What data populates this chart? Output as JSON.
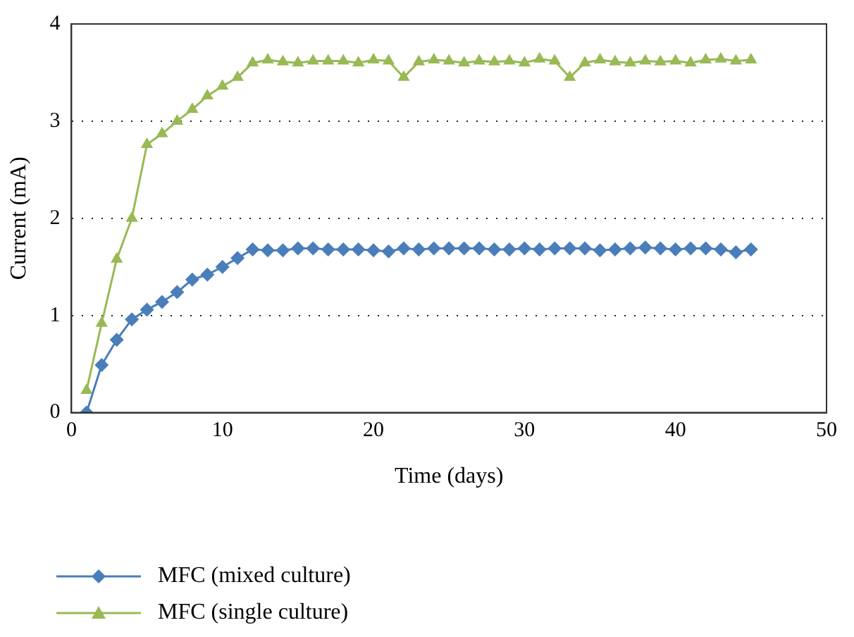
{
  "chart_data": {
    "type": "line",
    "xlabel": "Time (days)",
    "ylabel": "Current (mA)",
    "x": [
      1,
      2,
      3,
      4,
      5,
      6,
      7,
      8,
      9,
      10,
      11,
      12,
      13,
      14,
      15,
      16,
      17,
      18,
      19,
      20,
      21,
      22,
      23,
      24,
      25,
      26,
      27,
      28,
      29,
      30,
      31,
      32,
      33,
      34,
      35,
      36,
      37,
      38,
      39,
      40,
      41,
      42,
      43,
      44,
      45
    ],
    "xlim": [
      0,
      50
    ],
    "xticks": [
      0,
      10,
      20,
      30,
      40,
      50
    ],
    "ylim": [
      0,
      4
    ],
    "yticks": [
      0,
      1,
      2,
      3,
      4
    ],
    "grid": "y",
    "legend": "bottom",
    "series": [
      {
        "name": "MFC (mixed culture)",
        "color": "#4a7ebb",
        "marker": "diamond",
        "values": [
          0,
          0.49,
          0.75,
          0.96,
          1.06,
          1.14,
          1.24,
          1.37,
          1.42,
          1.5,
          1.59,
          1.68,
          1.67,
          1.67,
          1.69,
          1.69,
          1.68,
          1.68,
          1.68,
          1.67,
          1.66,
          1.69,
          1.68,
          1.69,
          1.69,
          1.69,
          1.69,
          1.68,
          1.68,
          1.69,
          1.68,
          1.69,
          1.69,
          1.69,
          1.67,
          1.68,
          1.69,
          1.7,
          1.69,
          1.68,
          1.69,
          1.69,
          1.68,
          1.65,
          1.68
        ]
      },
      {
        "name": "MFC (single culture)",
        "color": "#98b954",
        "marker": "triangle",
        "values": [
          0.23,
          0.92,
          1.58,
          2.0,
          2.76,
          2.87,
          3.0,
          3.12,
          3.26,
          3.36,
          3.45,
          3.6,
          3.63,
          3.61,
          3.6,
          3.62,
          3.62,
          3.62,
          3.6,
          3.63,
          3.62,
          3.45,
          3.61,
          3.63,
          3.62,
          3.6,
          3.62,
          3.61,
          3.62,
          3.6,
          3.64,
          3.62,
          3.45,
          3.6,
          3.63,
          3.61,
          3.6,
          3.62,
          3.61,
          3.62,
          3.6,
          3.63,
          3.64,
          3.62,
          3.63
        ]
      }
    ]
  }
}
